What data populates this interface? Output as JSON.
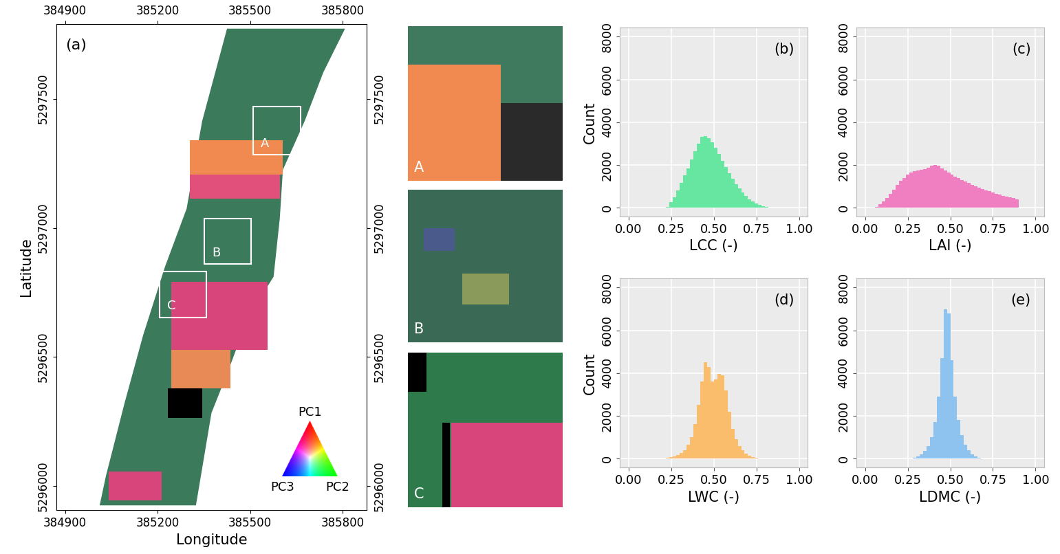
{
  "chart_data": [
    {
      "type": "map",
      "panel": "(a)",
      "xlabel": "Longitude",
      "ylabel": "Latitude",
      "xlim": [
        384871,
        385878
      ],
      "ylim": [
        5295907,
        5297790
      ],
      "xticks": [
        384900,
        385200,
        385500,
        385800
      ],
      "yticks": [
        5296000,
        5296500,
        5297000,
        5297500
      ],
      "boxes": [
        {
          "label": "A",
          "x": [
            385509,
            385664
          ],
          "y": [
            5297284,
            5297470
          ]
        },
        {
          "label": "B",
          "x": [
            385351,
            385503
          ],
          "y": [
            5296861,
            5297036
          ]
        },
        {
          "label": "C",
          "x": [
            385206,
            385358
          ],
          "y": [
            5296654,
            5296831
          ]
        }
      ],
      "insets": [
        "A",
        "B",
        "C"
      ],
      "color_legend": [
        "PC1",
        "PC2",
        "PC3"
      ]
    },
    {
      "type": "histogram",
      "panel": "(b)",
      "xlabel": "LCC (-)",
      "ylabel": "Count",
      "color": "#66e6a0",
      "bins": [
        0.22,
        0.24,
        0.26,
        0.28,
        0.3,
        0.32,
        0.34,
        0.36,
        0.38,
        0.4,
        0.42,
        0.44,
        0.46,
        0.48,
        0.5,
        0.52,
        0.54,
        0.56,
        0.58,
        0.6,
        0.62,
        0.64,
        0.66,
        0.68,
        0.7,
        0.72,
        0.74,
        0.76,
        0.78,
        0.8,
        0.82
      ],
      "counts": [
        50,
        250,
        500,
        800,
        1150,
        1500,
        1850,
        2250,
        2650,
        3000,
        3300,
        3350,
        3250,
        3050,
        2800,
        2500,
        2200,
        1900,
        1600,
        1350,
        1100,
        900,
        700,
        550,
        400,
        300,
        200,
        130,
        70,
        30
      ],
      "xlim": [
        -0.05,
        1.05
      ],
      "ylim": [
        -420,
        8420
      ],
      "xticks": [
        {
          "value": 0,
          "label": "0.00"
        },
        {
          "value": 0.25,
          "label": "0.25"
        },
        {
          "value": 0.5,
          "label": "0.50"
        },
        {
          "value": 0.75,
          "label": "0.75"
        },
        {
          "value": 1,
          "label": "1.00"
        }
      ],
      "yticks": [
        0,
        2000,
        4000,
        6000,
        8000
      ],
      "grid": true
    },
    {
      "type": "histogram",
      "panel": "(c)",
      "xlabel": "LAI (-)",
      "color": "#ef7fc0",
      "bins": [
        0.06,
        0.08,
        0.1,
        0.12,
        0.14,
        0.16,
        0.18,
        0.2,
        0.22,
        0.24,
        0.26,
        0.28,
        0.3,
        0.32,
        0.34,
        0.36,
        0.38,
        0.4,
        0.42,
        0.44,
        0.46,
        0.48,
        0.5,
        0.52,
        0.54,
        0.56,
        0.58,
        0.6,
        0.62,
        0.64,
        0.66,
        0.68,
        0.7,
        0.72,
        0.74,
        0.76,
        0.78,
        0.8,
        0.82,
        0.84,
        0.86,
        0.88,
        0.9
      ],
      "counts": [
        50,
        150,
        300,
        450,
        650,
        850,
        1050,
        1250,
        1400,
        1550,
        1650,
        1700,
        1750,
        1780,
        1820,
        1880,
        1950,
        2000,
        1950,
        1850,
        1750,
        1650,
        1550,
        1450,
        1380,
        1300,
        1220,
        1150,
        1080,
        1000,
        940,
        880,
        820,
        760,
        700,
        650,
        600,
        560,
        520,
        480,
        440,
        400
      ],
      "xlim": [
        -0.05,
        1.05
      ],
      "ylim": [
        -420,
        8420
      ],
      "xticks": [
        {
          "value": 0,
          "label": "0.00"
        },
        {
          "value": 0.25,
          "label": "0.25"
        },
        {
          "value": 0.5,
          "label": "0.50"
        },
        {
          "value": 0.75,
          "label": "0.75"
        },
        {
          "value": 1,
          "label": "1.00"
        }
      ],
      "yticks": [
        0,
        2000,
        4000,
        6000,
        8000
      ],
      "grid": true
    },
    {
      "type": "histogram",
      "panel": "(d)",
      "xlabel": "LWC (-)",
      "ylabel": "Count",
      "color": "#f9bd6b",
      "bins": [
        0.22,
        0.24,
        0.26,
        0.28,
        0.3,
        0.32,
        0.34,
        0.36,
        0.38,
        0.4,
        0.42,
        0.44,
        0.46,
        0.48,
        0.5,
        0.52,
        0.54,
        0.56,
        0.58,
        0.6,
        0.62,
        0.64,
        0.66,
        0.68,
        0.7,
        0.72,
        0.74,
        0.76,
        0.78
      ],
      "counts": [
        30,
        60,
        100,
        160,
        250,
        400,
        650,
        1000,
        1600,
        2500,
        3600,
        4500,
        4300,
        3600,
        3700,
        3950,
        3900,
        3200,
        2200,
        1400,
        900,
        600,
        380,
        240,
        140,
        80,
        40,
        20
      ],
      "xlim": [
        -0.05,
        1.05
      ],
      "ylim": [
        -420,
        8420
      ],
      "xticks": [
        {
          "value": 0,
          "label": "0.00"
        },
        {
          "value": 0.25,
          "label": "0.25"
        },
        {
          "value": 0.5,
          "label": "0.50"
        },
        {
          "value": 0.75,
          "label": "0.75"
        },
        {
          "value": 1,
          "label": "1.00"
        }
      ],
      "yticks": [
        0,
        2000,
        4000,
        6000,
        8000
      ],
      "grid": true
    },
    {
      "type": "histogram",
      "panel": "(e)",
      "xlabel": "LDMC (-)",
      "color": "#8ec3ef",
      "bins": [
        0.28,
        0.3,
        0.32,
        0.34,
        0.36,
        0.38,
        0.4,
        0.42,
        0.44,
        0.46,
        0.48,
        0.5,
        0.52,
        0.54,
        0.56,
        0.58,
        0.6,
        0.62,
        0.64,
        0.66,
        0.68,
        0.7
      ],
      "counts": [
        40,
        100,
        200,
        350,
        600,
        1000,
        1700,
        2900,
        4700,
        7000,
        6800,
        4600,
        2900,
        1800,
        1100,
        650,
        380,
        210,
        110,
        50,
        20
      ],
      "xlim": [
        -0.05,
        1.05
      ],
      "ylim": [
        -420,
        8420
      ],
      "xticks": [
        {
          "value": 0,
          "label": "0.00"
        },
        {
          "value": 0.25,
          "label": "0.25"
        },
        {
          "value": 0.5,
          "label": "0.50"
        },
        {
          "value": 0.75,
          "label": "0.75"
        },
        {
          "value": 1,
          "label": "1.00"
        }
      ],
      "yticks": [
        0,
        2000,
        4000,
        6000,
        8000
      ],
      "grid": true
    }
  ]
}
